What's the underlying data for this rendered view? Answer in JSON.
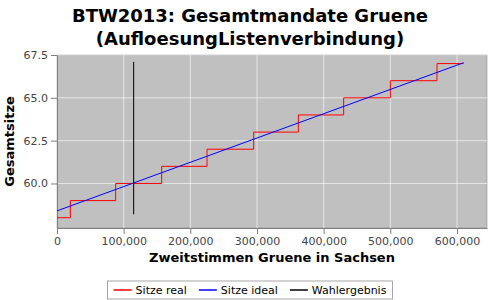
{
  "chart_data": {
    "type": "line",
    "title": "BTW2013: Gesamtmandate Gruene",
    "subtitle": "(AufloesungListenverbindung)",
    "x_label": "Zweitstimmen Gruene in Sachsen",
    "y_label": "Gesamtsitze",
    "xlim": [
      0,
      645000
    ],
    "ylim": [
      57.4,
      67.5
    ],
    "xticks": [
      0,
      {
        "value": 100000,
        "label": "100,000"
      },
      {
        "value": 200000,
        "label": "200,000"
      },
      {
        "value": 300000,
        "label": "300,000"
      },
      {
        "value": 400000,
        "label": "400,000"
      },
      {
        "value": 500000,
        "label": "500,000"
      },
      {
        "value": 600000,
        "label": "600,000"
      }
    ],
    "yticks": [
      {
        "value": 60,
        "label": "60.0"
      },
      62.5,
      {
        "value": 65,
        "label": "65.0"
      },
      67.5
    ],
    "grid": true,
    "legend": "bottom",
    "series": [
      {
        "name": "Sitze real",
        "color": "#ff0000",
        "line_style": "step",
        "x": [
          0,
          20000,
          88000,
          157000,
          225000,
          295000,
          362000,
          430000,
          500000,
          570000,
          610000
        ],
        "values": [
          58,
          59,
          60,
          61,
          62,
          63,
          64,
          65,
          66,
          67,
          67
        ]
      },
      {
        "name": "Sitze ideal",
        "color": "#0000ff",
        "line_style": "solid",
        "x": [
          0,
          610000
        ],
        "values": [
          58.4,
          67.05
        ]
      },
      {
        "name": "Wahlergebnis",
        "color": "#000000",
        "line_style": "solid",
        "x": [
          115000,
          115000
        ],
        "values": [
          58.2,
          67.1
        ]
      }
    ]
  }
}
